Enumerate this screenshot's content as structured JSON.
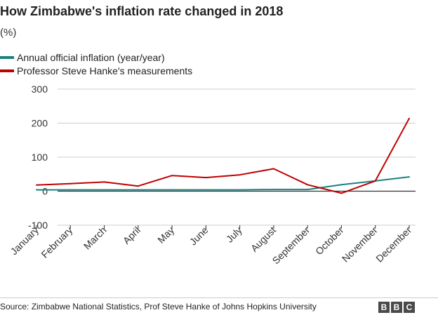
{
  "title": "How Zimbabwe's inflation rate changed in 2018",
  "subtitle": "(%)",
  "source": "Source: Zimbabwe National Statistics, Prof Steve Hanke of Johns Hopkins University",
  "logo": [
    "B",
    "B",
    "C"
  ],
  "colors": {
    "official": "#1a8080",
    "hanke": "#c00000",
    "grid": "#cccccc",
    "axis": "#333333"
  },
  "chart_data": {
    "type": "line",
    "categories": [
      "January",
      "February",
      "March",
      "April",
      "May",
      "June",
      "July",
      "August",
      "September",
      "October",
      "November",
      "December"
    ],
    "series": [
      {
        "name": "Annual official inflation (year/year)",
        "color": "#1a8080",
        "values": [
          4.0,
          4.0,
          4.0,
          4.0,
          4.0,
          4.0,
          4.0,
          5.0,
          5.0,
          19.0,
          30.0,
          42.0
        ]
      },
      {
        "name": "Professor Steve Hanke's measurements",
        "color": "#c00000",
        "values": [
          18.0,
          22.0,
          27.0,
          15.0,
          46.0,
          40.0,
          48.0,
          66.0,
          19.0,
          -6.0,
          30.0,
          214.0
        ]
      }
    ],
    "ylim": [
      -100,
      300
    ],
    "yticks": [
      -100,
      0,
      100,
      200,
      300
    ],
    "grid": true,
    "legend": "top-left"
  }
}
